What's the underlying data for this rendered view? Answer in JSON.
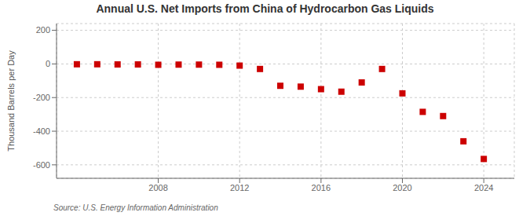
{
  "chart_data": {
    "type": "scatter",
    "title": "Annual U.S. Net Imports from China of Hydrocarbon Gas Liquids",
    "ylabel": "Thousand Barrels per Day",
    "source": "Source: U.S. Energy Information Administration",
    "x": [
      2004,
      2005,
      2006,
      2007,
      2008,
      2009,
      2010,
      2011,
      2012,
      2013,
      2014,
      2015,
      2016,
      2017,
      2018,
      2019,
      2020,
      2021,
      2022,
      2023,
      2024
    ],
    "values": [
      -2,
      -2,
      -3,
      -3,
      -5,
      -4,
      -4,
      -5,
      -10,
      -30,
      -130,
      -135,
      -150,
      -165,
      -110,
      -30,
      -175,
      -285,
      -310,
      -460,
      -565
    ],
    "color": "#cc0000",
    "marker": "square",
    "xlim": [
      2003.0,
      2025.5
    ],
    "xticks": [
      2008,
      2012,
      2016,
      2020,
      2024
    ],
    "ylim": [
      -680,
      240
    ],
    "yticks": [
      -600,
      -400,
      -200,
      0,
      200
    ],
    "grid": true
  }
}
